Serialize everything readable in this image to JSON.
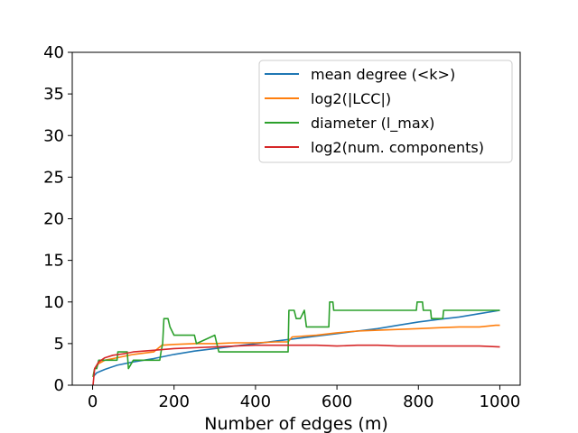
{
  "chart_data": {
    "type": "line",
    "title": "",
    "xlabel": "Number of edges (m)",
    "ylabel": "",
    "xlim": [
      -50,
      1050
    ],
    "ylim": [
      0,
      40
    ],
    "xticks": [
      0,
      200,
      400,
      600,
      800,
      1000
    ],
    "yticks": [
      0,
      5,
      10,
      15,
      20,
      25,
      30,
      35,
      40
    ],
    "grid": false,
    "legend_position": "top-right",
    "series": [
      {
        "name": "mean degree (<k>)",
        "color": "#1f77b4",
        "x": [
          1,
          10,
          30,
          60,
          100,
          150,
          200,
          250,
          300,
          350,
          400,
          450,
          500,
          550,
          600,
          650,
          700,
          750,
          800,
          850,
          900,
          950,
          1000
        ],
        "y": [
          1.0,
          1.5,
          1.9,
          2.4,
          2.8,
          3.2,
          3.7,
          4.1,
          4.4,
          4.7,
          5.0,
          5.3,
          5.6,
          5.9,
          6.2,
          6.5,
          6.8,
          7.2,
          7.6,
          7.9,
          8.2,
          8.6,
          9.0
        ]
      },
      {
        "name": "log2(|LCC|)",
        "color": "#ff7f0e",
        "x": [
          1,
          5,
          15,
          30,
          60,
          100,
          150,
          170,
          200,
          250,
          300,
          350,
          400,
          450,
          480,
          490,
          550,
          600,
          650,
          700,
          750,
          800,
          850,
          900,
          950,
          990,
          1000
        ],
        "y": [
          1.0,
          2.0,
          2.6,
          3.0,
          3.3,
          3.7,
          4.0,
          4.8,
          4.9,
          5.0,
          5.0,
          5.1,
          5.1,
          5.2,
          5.2,
          5.8,
          6.0,
          6.3,
          6.5,
          6.6,
          6.7,
          6.8,
          6.9,
          7.0,
          7.0,
          7.2,
          7.2
        ]
      },
      {
        "name": "diameter (l_max)",
        "color": "#2ca02c",
        "x": [
          1,
          5,
          10,
          15,
          20,
          60,
          62,
          85,
          88,
          100,
          165,
          168,
          172,
          175,
          185,
          190,
          200,
          250,
          255,
          300,
          310,
          480,
          482,
          495,
          500,
          510,
          520,
          525,
          580,
          582,
          590,
          592,
          795,
          797,
          810,
          812,
          830,
          832,
          860,
          862,
          1000
        ],
        "y": [
          1,
          2,
          2,
          3,
          3,
          3,
          4,
          4,
          2,
          3,
          3,
          4,
          5,
          8,
          8,
          7,
          6,
          6,
          5,
          6,
          4,
          4,
          9,
          9,
          8,
          8,
          9,
          7,
          7,
          10,
          10,
          9,
          9,
          10,
          10,
          9,
          9,
          8,
          8,
          9,
          9
        ]
      },
      {
        "name": "log2(num. components)",
        "color": "#d62728",
        "x": [
          1,
          5,
          15,
          30,
          50,
          80,
          100,
          150,
          200,
          250,
          300,
          350,
          400,
          450,
          500,
          550,
          600,
          650,
          700,
          750,
          800,
          850,
          900,
          950,
          1000
        ],
        "y": [
          0,
          2.0,
          2.8,
          3.3,
          3.6,
          3.8,
          4.0,
          4.2,
          4.4,
          4.5,
          4.6,
          4.7,
          4.8,
          4.8,
          4.8,
          4.8,
          4.7,
          4.8,
          4.8,
          4.7,
          4.7,
          4.7,
          4.7,
          4.7,
          4.6
        ]
      }
    ]
  }
}
